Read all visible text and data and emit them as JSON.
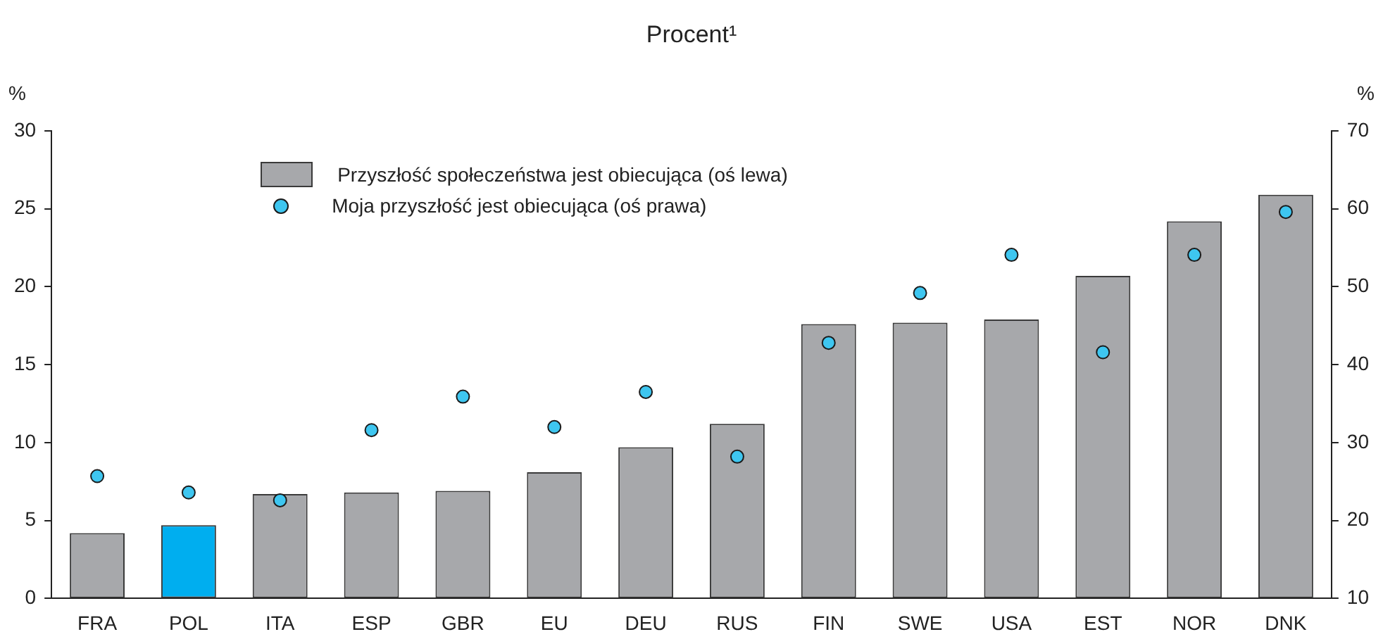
{
  "chart_data": {
    "type": "bar",
    "title": "Procent¹",
    "ylabel": "%",
    "y2label": "%",
    "categories": [
      "FRA",
      "POL",
      "ITA",
      "ESP",
      "GBR",
      "EU",
      "DEU",
      "RUS",
      "FIN",
      "SWE",
      "USA",
      "EST",
      "NOR",
      "DNK"
    ],
    "series": [
      {
        "name": "Przyszłość społeczeństwa jest obiecująca (oś lewa)",
        "color": "#a7a8ab",
        "colors": [
          "#a7a8ab",
          "#00aeef",
          "#a7a8ab",
          "#a7a8ab",
          "#a7a8ab",
          "#a7a8ab",
          "#a7a8ab",
          "#a7a8ab",
          "#a7a8ab",
          "#a7a8ab",
          "#a7a8ab",
          "#a7a8ab",
          "#a7a8ab",
          "#a7a8ab"
        ],
        "values": [
          4.2,
          4.7,
          6.7,
          6.8,
          6.9,
          8.1,
          9.7,
          11.2,
          17.6,
          17.7,
          17.9,
          20.7,
          24.2,
          25.9
        ]
      },
      {
        "name": "Moja przyszłość jest obiecująca (oś prawa)",
        "type": "scatter",
        "axis": "y2",
        "marker": "circle",
        "color": "#3ec6f0",
        "values": [
          25.7,
          23.6,
          22.6,
          31.6,
          35.9,
          32.0,
          36.5,
          28.2,
          42.8,
          49.2,
          54.1,
          41.6,
          54.1,
          59.6
        ]
      }
    ],
    "ylim": [
      0,
      30
    ],
    "yticks": [
      0,
      5,
      10,
      15,
      20,
      25,
      30
    ],
    "y2lim": [
      10,
      70
    ],
    "y2ticks": [
      10,
      20,
      30,
      40,
      50,
      60,
      70
    ],
    "grid": false,
    "legend": "top left"
  }
}
